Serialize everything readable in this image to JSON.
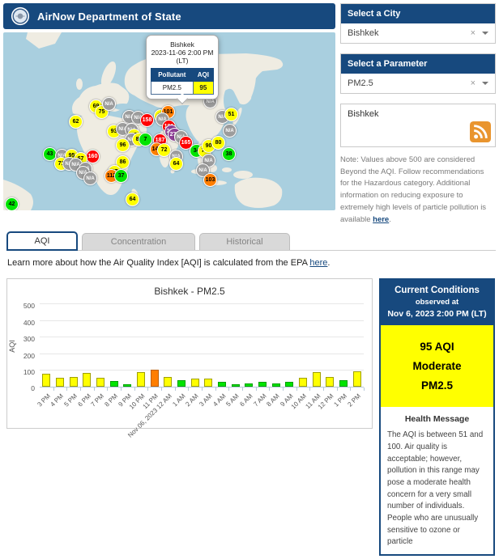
{
  "header": {
    "title": "AirNow Department of State"
  },
  "map": {
    "popup": {
      "city": "Bishkek",
      "datetime": "2023-11-06 2:00 PM",
      "tz": "(LT)",
      "col_pollutant": "Pollutant",
      "col_aqi": "AQI",
      "pollutant": "PM2.5",
      "aqi": "95"
    },
    "markers": [
      {
        "x": 89,
        "y": 110,
        "label": "62",
        "level": "yellow"
      },
      {
        "x": 114,
        "y": 91,
        "label": "69",
        "level": "yellow"
      },
      {
        "x": 121,
        "y": 98,
        "label": "75",
        "level": "yellow"
      },
      {
        "x": 130,
        "y": 88,
        "label": "N/A",
        "level": "gray"
      },
      {
        "x": 155,
        "y": 104,
        "label": "N/A",
        "level": "gray"
      },
      {
        "x": 166,
        "y": 105,
        "label": "N/A",
        "level": "gray"
      },
      {
        "x": 177,
        "y": 108,
        "label": "158",
        "level": "red"
      },
      {
        "x": 194,
        "y": 103,
        "label": "86",
        "level": "yellow"
      },
      {
        "x": 203,
        "y": 98,
        "label": "101",
        "level": "orange"
      },
      {
        "x": 196,
        "y": 107,
        "label": "N/A",
        "level": "gray"
      },
      {
        "x": 136,
        "y": 122,
        "label": "93",
        "level": "yellow"
      },
      {
        "x": 147,
        "y": 119,
        "label": "N/A",
        "level": "gray"
      },
      {
        "x": 158,
        "y": 120,
        "label": "N/A",
        "level": "gray"
      },
      {
        "x": 161,
        "y": 127,
        "label": "98",
        "level": "yellow"
      },
      {
        "x": 158,
        "y": 132,
        "label": "N/A",
        "level": "gray"
      },
      {
        "x": 167,
        "y": 132,
        "label": "84",
        "level": "yellow"
      },
      {
        "x": 175,
        "y": 132,
        "label": "7",
        "level": "green"
      },
      {
        "x": 147,
        "y": 139,
        "label": "96",
        "level": "yellow"
      },
      {
        "x": 204,
        "y": 116,
        "label": "181",
        "level": "red"
      },
      {
        "x": 207,
        "y": 122,
        "label": "222",
        "level": "purple"
      },
      {
        "x": 211,
        "y": 126,
        "label": "273",
        "level": "purple"
      },
      {
        "x": 219,
        "y": 129,
        "label": "N/A",
        "level": "gray"
      },
      {
        "x": 225,
        "y": 136,
        "label": "165",
        "level": "red"
      },
      {
        "x": 193,
        "y": 133,
        "label": "187",
        "level": "red"
      },
      {
        "x": 189,
        "y": 144,
        "label": "145",
        "level": "orange"
      },
      {
        "x": 198,
        "y": 145,
        "label": "72",
        "level": "yellow"
      },
      {
        "x": 213,
        "y": 153,
        "label": "N/A",
        "level": "gray"
      },
      {
        "x": 213,
        "y": 162,
        "label": "64",
        "level": "yellow"
      },
      {
        "x": 147,
        "y": 160,
        "label": "86",
        "level": "yellow"
      },
      {
        "x": 110,
        "y": 153,
        "label": "160",
        "level": "red"
      },
      {
        "x": 57,
        "y": 150,
        "label": "43",
        "level": "green"
      },
      {
        "x": 72,
        "y": 152,
        "label": "N/A",
        "level": "gray"
      },
      {
        "x": 84,
        "y": 152,
        "label": "95",
        "level": "yellow"
      },
      {
        "x": 95,
        "y": 156,
        "label": "67",
        "level": "yellow"
      },
      {
        "x": 71,
        "y": 162,
        "label": "71",
        "level": "yellow"
      },
      {
        "x": 81,
        "y": 162,
        "label": "N/A",
        "level": "gray"
      },
      {
        "x": 89,
        "y": 163,
        "label": "N/A",
        "level": "gray"
      },
      {
        "x": 101,
        "y": 168,
        "label": "N/A",
        "level": "gray"
      },
      {
        "x": 98,
        "y": 173,
        "label": "N/A",
        "level": "gray"
      },
      {
        "x": 107,
        "y": 180,
        "label": "N/A",
        "level": "gray"
      },
      {
        "x": 137,
        "y": 172,
        "label": "67",
        "level": "yellow"
      },
      {
        "x": 133,
        "y": 177,
        "label": "112",
        "level": "orange"
      },
      {
        "x": 145,
        "y": 177,
        "label": "37",
        "level": "green"
      },
      {
        "x": 159,
        "y": 206,
        "label": "64",
        "level": "yellow"
      },
      {
        "x": 10,
        "y": 212,
        "label": "42",
        "level": "green"
      },
      {
        "x": 255,
        "y": 85,
        "label": "N/A",
        "level": "gray"
      },
      {
        "x": 270,
        "y": 104,
        "label": "N/A",
        "level": "gray"
      },
      {
        "x": 281,
        "y": 101,
        "label": "51",
        "level": "yellow"
      },
      {
        "x": 279,
        "y": 121,
        "label": "N/A",
        "level": "gray"
      },
      {
        "x": 238,
        "y": 146,
        "label": "34",
        "level": "green"
      },
      {
        "x": 248,
        "y": 146,
        "label": "73",
        "level": "yellow"
      },
      {
        "x": 253,
        "y": 140,
        "label": "90",
        "level": "yellow"
      },
      {
        "x": 265,
        "y": 136,
        "label": "80",
        "level": "yellow"
      },
      {
        "x": 278,
        "y": 150,
        "label": "38",
        "level": "green"
      },
      {
        "x": 253,
        "y": 158,
        "label": "N/A",
        "level": "gray"
      },
      {
        "x": 246,
        "y": 170,
        "label": "N/A",
        "level": "gray"
      },
      {
        "x": 255,
        "y": 182,
        "label": "103",
        "level": "orange"
      }
    ]
  },
  "sidebar": {
    "city_panel": {
      "title": "Select a City",
      "value": "Bishkek",
      "clear": "×"
    },
    "parameter_panel": {
      "title": "Select a Parameter",
      "value": "PM2.5",
      "clear": "×"
    },
    "feed_box": {
      "label": "Bishkek",
      "icon": "rss-icon"
    },
    "note": {
      "text": "Note: Values above 500 are considered Beyond the AQI. Follow recommendations for the Hazardous category. Additional information on reducing exposure to extremely high levels of particle pollution is available ",
      "link": "here",
      "suffix": "."
    }
  },
  "tabs": [
    {
      "label": "AQI",
      "active": true
    },
    {
      "label": "Concentration",
      "active": false
    },
    {
      "label": "Historical",
      "active": false
    }
  ],
  "learn_more": {
    "text": "Learn more about how the Air Quality Index [AQI] is calculated from the EPA ",
    "link": "here",
    "suffix": "."
  },
  "chart_data": {
    "type": "bar",
    "title": "Bishkek - PM2.5",
    "xlabel": "",
    "ylabel": "AQI",
    "ylim": [
      0,
      500
    ],
    "yticks": [
      0,
      100,
      200,
      300,
      400,
      500
    ],
    "grid": true,
    "categories": [
      "3 PM",
      "4 PM",
      "5 PM",
      "6 PM",
      "7 PM",
      "8 PM",
      "9 PM",
      "10 PM",
      "11 PM",
      "Nov 06, 2023 12 AM",
      "1 AM",
      "2 AM",
      "3 AM",
      "4 AM",
      "5 AM",
      "6 AM",
      "7 AM",
      "8 AM",
      "9 AM",
      "10 AM",
      "11 AM",
      "12 PM",
      "1 PM",
      "2 PM"
    ],
    "values": [
      78,
      55,
      62,
      85,
      55,
      35,
      15,
      88,
      105,
      62,
      40,
      52,
      52,
      30,
      15,
      20,
      33,
      23,
      32,
      55,
      88,
      60,
      40,
      95
    ],
    "aqi_color_rule": "green <=50, yellow 51-100, orange 101-150"
  },
  "current_conditions": {
    "title": "Current Conditions",
    "observed_at": "observed at",
    "datetime": "Nov 6, 2023 2:00 PM (LT)",
    "aqi": "95 AQI",
    "category": "Moderate",
    "pollutant": "PM2.5",
    "health_title": "Health Message",
    "health_text": "The AQI is between 51 and 100. Air quality is acceptable; however, pollution in this range may pose a moderate health concern for a very small number of individuals. People who are unusually sensitive to ozone or particle"
  },
  "colors": {
    "navy": "#17497E",
    "aqi_green": "#00E400",
    "aqi_yellow": "#FFFF00",
    "aqi_orange": "#FF7E00",
    "aqi_red": "#FF0000",
    "aqi_purple": "#8F3F97",
    "na_gray": "#9C9C9C",
    "map_water": "#A9CFDF",
    "map_land": "#EFECE2",
    "rss_orange": "#E9952F"
  }
}
